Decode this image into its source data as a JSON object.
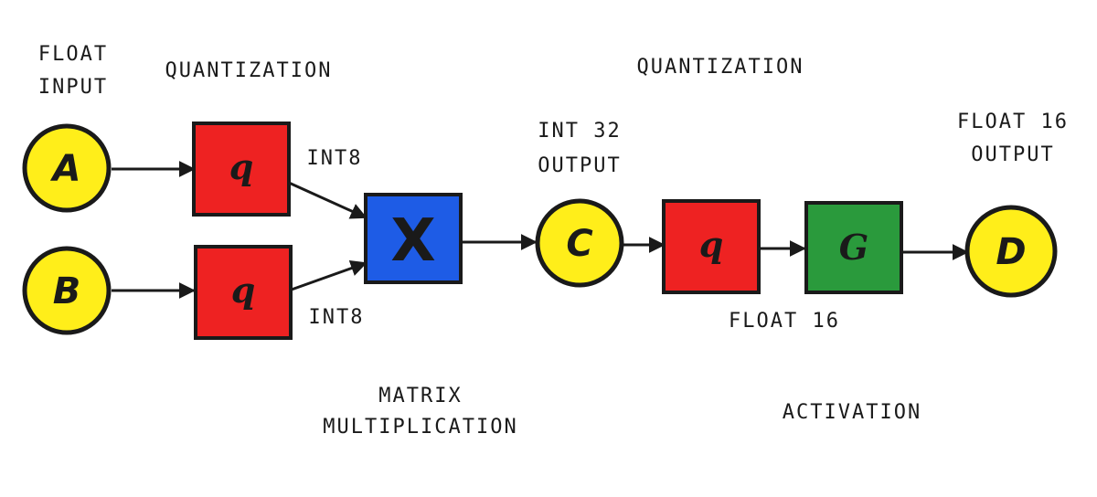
{
  "colors": {
    "node_fill": "#ffee1a",
    "quant_fill": "#ee2222",
    "mult_fill": "#1e5ce6",
    "act_fill": "#2a9a3c",
    "stroke": "#1a1a1a"
  },
  "nodes": {
    "a": "A",
    "b": "B",
    "c": "C",
    "d": "D"
  },
  "boxes": {
    "quant_a_symbol": "q",
    "quant_b_symbol": "q",
    "multiply_symbol": "X",
    "quant_c_symbol": "q",
    "activation_symbol": "G"
  },
  "labels": {
    "float_input": [
      "FLOAT",
      "INPUT"
    ],
    "quantization_1": "QUANTIZATION",
    "int8_top": "INT8",
    "int8_bottom": "INT8",
    "int32_output": [
      "INT 32",
      "OUTPUT"
    ],
    "quantization_2": "QUANTIZATION",
    "float16_output": [
      "FLOAT 16",
      "OUTPUT"
    ],
    "float16_mid": "FLOAT 16",
    "matrix_multiplication": [
      "MATRIX",
      "MULTIPLICATION"
    ],
    "activation": "ACTIVATION"
  }
}
